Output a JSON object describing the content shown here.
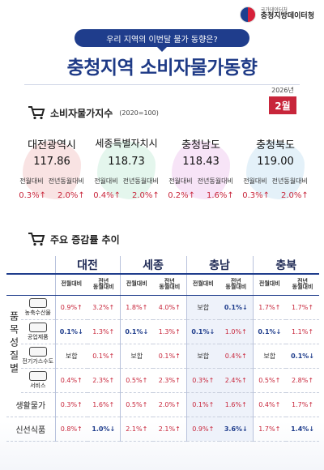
{
  "header": {
    "org_small": "국가데이터처",
    "org_name": "충청지방데이터청",
    "banner": "우리 지역의 이번달 물가 동향은?",
    "title": "충청지역 소비자물가동향",
    "year": "2026년",
    "month": "2월"
  },
  "colors": {
    "navy": "#1f3d8c",
    "red": "#c8263b"
  },
  "cpi_section": {
    "title": "소비자물가지수",
    "subtitle": "(2020=100)",
    "icon": "cart-icon",
    "regions": [
      {
        "name": "대전광역시",
        "value": "117.86",
        "label_mom": "전월대비",
        "label_yoy": "전년동월대비",
        "mom": "0.3%↑",
        "yoy": "2.0%↑",
        "map_color": "#f3c7c7"
      },
      {
        "name": "세종특별자치시",
        "value": "118.73",
        "label_mom": "전월대비",
        "label_yoy": "전년동월대비",
        "mom": "0.4%↑",
        "yoy": "2.0%↑",
        "map_color": "#c9eedc"
      },
      {
        "name": "충청남도",
        "value": "118.43",
        "label_mom": "전월대비",
        "label_yoy": "전년동월대비",
        "mom": "0.2%↑",
        "yoy": "1.6%↑",
        "map_color": "#efc9ef"
      },
      {
        "name": "충청북도",
        "value": "119.00",
        "label_mom": "전월대비",
        "label_yoy": "전년동월대비",
        "mom": "0.3%↑",
        "yoy": "2.0%↑",
        "map_color": "#c9e3f3"
      }
    ]
  },
  "trend_section": {
    "title": "주요 증감률 추이",
    "icon": "cart-icon",
    "regions": [
      "대전",
      "세종",
      "충남",
      "충북"
    ],
    "sub_mom": "전월대비",
    "sub_yoy": "전년\n동월대비",
    "group_label": "품목성질별",
    "rows": [
      {
        "label": "농축수산물",
        "icon": "produce-icon",
        "values": [
          "0.9%↑",
          "3.2%↑",
          "1.8%↑",
          "4.0%↑",
          "보합",
          "0.1%↓",
          "1.7%↑",
          "1.7%↑"
        ]
      },
      {
        "label": "공업제품",
        "icon": "factory-icon",
        "values": [
          "0.1%↓",
          "1.3%↑",
          "0.1%↓",
          "1.3%↑",
          "0.1%↓",
          "1.0%↑",
          "0.1%↓",
          "1.1%↑"
        ]
      },
      {
        "label": "전기가스수도",
        "icon": "utility-icon",
        "values": [
          "보합",
          "0.1%↑",
          "보합",
          "0.1%↑",
          "보합",
          "0.4%↑",
          "보합",
          "0.1%↓"
        ]
      },
      {
        "label": "서비스",
        "icon": "service-icon",
        "values": [
          "0.4%↑",
          "2.3%↑",
          "0.5%↑",
          "2.3%↑",
          "0.3%↑",
          "2.4%↑",
          "0.5%↑",
          "2.8%↑"
        ]
      }
    ],
    "extra_rows": [
      {
        "label": "생활물가",
        "values": [
          "0.3%↑",
          "1.6%↑",
          "0.5%↑",
          "2.0%↑",
          "0.1%↑",
          "1.6%↑",
          "0.4%↑",
          "1.7%↑"
        ]
      },
      {
        "label": "신선식품",
        "values": [
          "0.8%↑",
          "1.0%↓",
          "2.1%↑",
          "2.1%↑",
          "0.9%↑",
          "3.6%↓",
          "1.7%↑",
          "1.4%↓"
        ]
      }
    ]
  }
}
